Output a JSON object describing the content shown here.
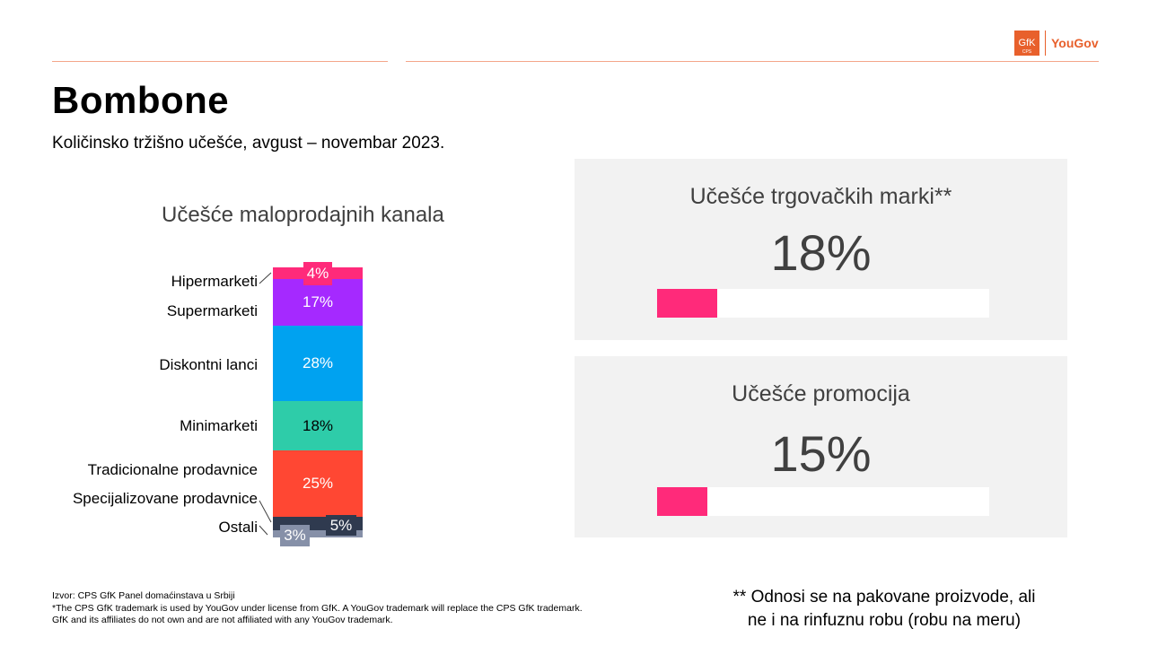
{
  "header": {
    "logo_gfk": "GfK",
    "logo_cps": "CPS",
    "logo_yougov": "YouGov"
  },
  "title": "Bombone",
  "subtitle": "Količinsko tržišno učešće, avgust – novembar 2023.",
  "chart_data": {
    "type": "bar",
    "title": "Učešće maloprodajnih kanala",
    "stacked": true,
    "categories": [
      "Hipermarketi",
      "Supermarketi",
      "Diskontni lanci",
      "Minimarketi",
      "Tradicionalne prodavnice",
      "Specijalizovane prodavnice",
      "Ostali"
    ],
    "values": [
      4,
      17,
      28,
      18,
      25,
      5,
      3
    ],
    "labels": [
      "4%",
      "17%",
      "28%",
      "18%",
      "25%",
      "5%",
      "3%"
    ],
    "colors": [
      "#ff2a7a",
      "#a529ff",
      "#00a2f0",
      "#2ecca9",
      "#ff4733",
      "#2f3a4f",
      "#8690a8"
    ]
  },
  "panels": [
    {
      "title": "Učešće trgovačkih marki**",
      "value_label": "18%",
      "value": 18,
      "fill_color": "#ff2a7a"
    },
    {
      "title": "Učešće promocija",
      "value_label": "15%",
      "value": 15,
      "fill_color": "#ff2a7a"
    }
  ],
  "footnote": {
    "line1": "Izvor: CPS GfK Panel domaćinstava u Srbiji",
    "line2": "*The CPS GfK trademark is used by YouGov under license from GfK. A YouGov trademark will replace the CPS GfK trademark.",
    "line3": "GfK and its affiliates do not own and are not affiliated with any YouGov trademark."
  },
  "note": {
    "line1": "** Odnosi se na pakovane proizvode, ali",
    "line2": "ne i na rinfuznu robu (robu na meru)"
  }
}
